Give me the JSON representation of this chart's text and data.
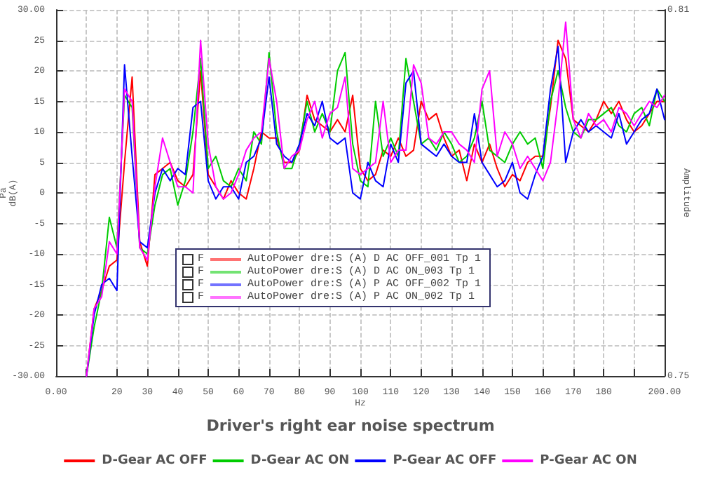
{
  "chart_data": {
    "type": "line",
    "title": "Driver's right ear noise spectrum",
    "xlabel": "Hz",
    "ylabel": "Pa\ndB(A)",
    "y2label": "Amplitude",
    "x": [
      10,
      12.5,
      15,
      17.5,
      20,
      22.5,
      25,
      27.5,
      30,
      32.5,
      35,
      37.5,
      40,
      42.5,
      45,
      47.5,
      50,
      52.5,
      55,
      57.5,
      60,
      62.5,
      65,
      67.5,
      70,
      72.5,
      75,
      77.5,
      80,
      82.5,
      85,
      87.5,
      90,
      92.5,
      95,
      97.5,
      100,
      102.5,
      105,
      107.5,
      110,
      112.5,
      115,
      117.5,
      120,
      122.5,
      125,
      127.5,
      130,
      132.5,
      135,
      137.5,
      140,
      142.5,
      145,
      147.5,
      150,
      152.5,
      155,
      157.5,
      160,
      162.5,
      165,
      167.5,
      170,
      172.5,
      175,
      177.5,
      180,
      182.5,
      185,
      187.5,
      190,
      192.5,
      195,
      197.5,
      200
    ],
    "series": [
      {
        "name": "D-Gear AC OFF",
        "color": "#ff0000",
        "values": [
          -30,
          -19,
          -16,
          -12,
          -11,
          5,
          19,
          -8,
          -12,
          3,
          4,
          5,
          2,
          1,
          3,
          20,
          3,
          1,
          -1,
          2,
          0,
          -1,
          4,
          10,
          9,
          9,
          5,
          5,
          7,
          16,
          12,
          11,
          10,
          12,
          10,
          16,
          4,
          2,
          3,
          7,
          6,
          9,
          6,
          7,
          15,
          12,
          13,
          9,
          6,
          7,
          2,
          8,
          5,
          8,
          4,
          1,
          3,
          2,
          5,
          6,
          6,
          14,
          25,
          22,
          12,
          11,
          10,
          12,
          15,
          13,
          15,
          12,
          10,
          11,
          13,
          15,
          15
        ]
      },
      {
        "name": "D-Gear AC ON",
        "color": "#00cc00",
        "values": [
          -30,
          -22,
          -16,
          -4,
          -9,
          16,
          14,
          -9,
          -10,
          -2,
          3,
          4,
          -2,
          2,
          10,
          22,
          4,
          6,
          2,
          1,
          4,
          2,
          10,
          8,
          23,
          10,
          4,
          4,
          8,
          15,
          10,
          13,
          10,
          20,
          23,
          8,
          2,
          1,
          15,
          6,
          9,
          6,
          22,
          15,
          8,
          9,
          7,
          10,
          8,
          5,
          6,
          9,
          15,
          7,
          6,
          5,
          8,
          10,
          8,
          9,
          4,
          15,
          20,
          14,
          10,
          9,
          12,
          12,
          13,
          14,
          11,
          10,
          13,
          14,
          11,
          17,
          15
        ]
      },
      {
        "name": "P-Gear AC OFF",
        "color": "#0000ff",
        "values": [
          -30,
          -20,
          -15,
          -14,
          -16,
          21,
          6,
          -8,
          -9,
          0,
          4,
          2,
          4,
          3,
          14,
          15,
          2,
          -1,
          1,
          1,
          -1,
          5,
          6,
          9,
          19,
          8,
          6,
          5,
          8,
          13,
          11,
          15,
          9,
          8,
          9,
          0,
          -1,
          5,
          2,
          1,
          8,
          5,
          18,
          20,
          8,
          7,
          6,
          8,
          6,
          5,
          5,
          13,
          5,
          3,
          1,
          2,
          5,
          0,
          -1,
          3,
          6,
          17,
          24,
          5,
          10,
          12,
          10,
          11,
          10,
          9,
          13,
          8,
          10,
          12,
          13,
          17,
          12
        ]
      },
      {
        "name": "P-Gear AC ON",
        "color": "#ff00ff",
        "values": [
          -30,
          -19,
          -17,
          -8,
          -10,
          17,
          15,
          -9,
          -11,
          1,
          9,
          5,
          1,
          1,
          0,
          25,
          8,
          1,
          -1,
          0,
          3,
          7,
          9,
          10,
          22,
          15,
          4,
          6,
          7,
          12,
          15,
          9,
          13,
          14,
          19,
          4,
          3,
          4,
          5,
          15,
          5,
          7,
          7,
          21,
          18,
          9,
          8,
          10,
          10,
          8,
          7,
          5,
          17,
          20,
          6,
          10,
          8,
          4,
          6,
          4,
          2,
          5,
          15,
          28,
          12,
          9,
          13,
          11,
          12,
          10,
          14,
          13,
          11,
          13,
          15,
          14,
          16
        ]
      }
    ],
    "xlim": [
      0,
      200
    ],
    "xticks": [
      {
        "value": 0,
        "label": "0.00"
      },
      {
        "value": 10,
        "label": null
      },
      20,
      30,
      40,
      50,
      60,
      70,
      80,
      90,
      100,
      110,
      120,
      130,
      140,
      150,
      160,
      170,
      180,
      {
        "value": 190,
        "label": null
      },
      {
        "value": 200,
        "label": "200.00"
      }
    ],
    "ylim": [
      -30,
      30
    ],
    "yticks": [
      {
        "value": -30,
        "label": "-30.00"
      },
      -25,
      -20,
      -15,
      -10,
      -5,
      0,
      5,
      10,
      15,
      20,
      25,
      {
        "value": 30,
        "label": "30.00"
      }
    ],
    "y2lim": [
      0.75,
      0.81
    ],
    "y2ticks": [
      {
        "value": 0.75,
        "label": "0.75"
      },
      {
        "value": 0.755,
        "label": null
      },
      {
        "value": 0.76,
        "label": null
      },
      {
        "value": 0.765,
        "label": null
      },
      {
        "value": 0.77,
        "label": null
      },
      {
        "value": 0.775,
        "label": null
      },
      {
        "value": 0.78,
        "label": null
      },
      {
        "value": 0.785,
        "label": null
      },
      {
        "value": 0.79,
        "label": null
      },
      {
        "value": 0.795,
        "label": null
      },
      {
        "value": 0.8,
        "label": null
      },
      {
        "value": 0.805,
        "label": null
      },
      {
        "value": 0.81,
        "label": "0.81"
      }
    ],
    "annotations": [
      "F",
      "AutoPower dre:S (A) D AC OFF_001 Tp 1",
      "F",
      "AutoPower dre:S (A) D AC ON_003 Tp 1",
      "F",
      "AutoPower dre:S (A) P AC OFF_002 Tp 1",
      "F",
      "AutoPower dre:S (A) P AC ON_002 Tp 1"
    ],
    "grid": true,
    "legend": "bottom",
    "marker": "none",
    "line_style": "solid"
  }
}
